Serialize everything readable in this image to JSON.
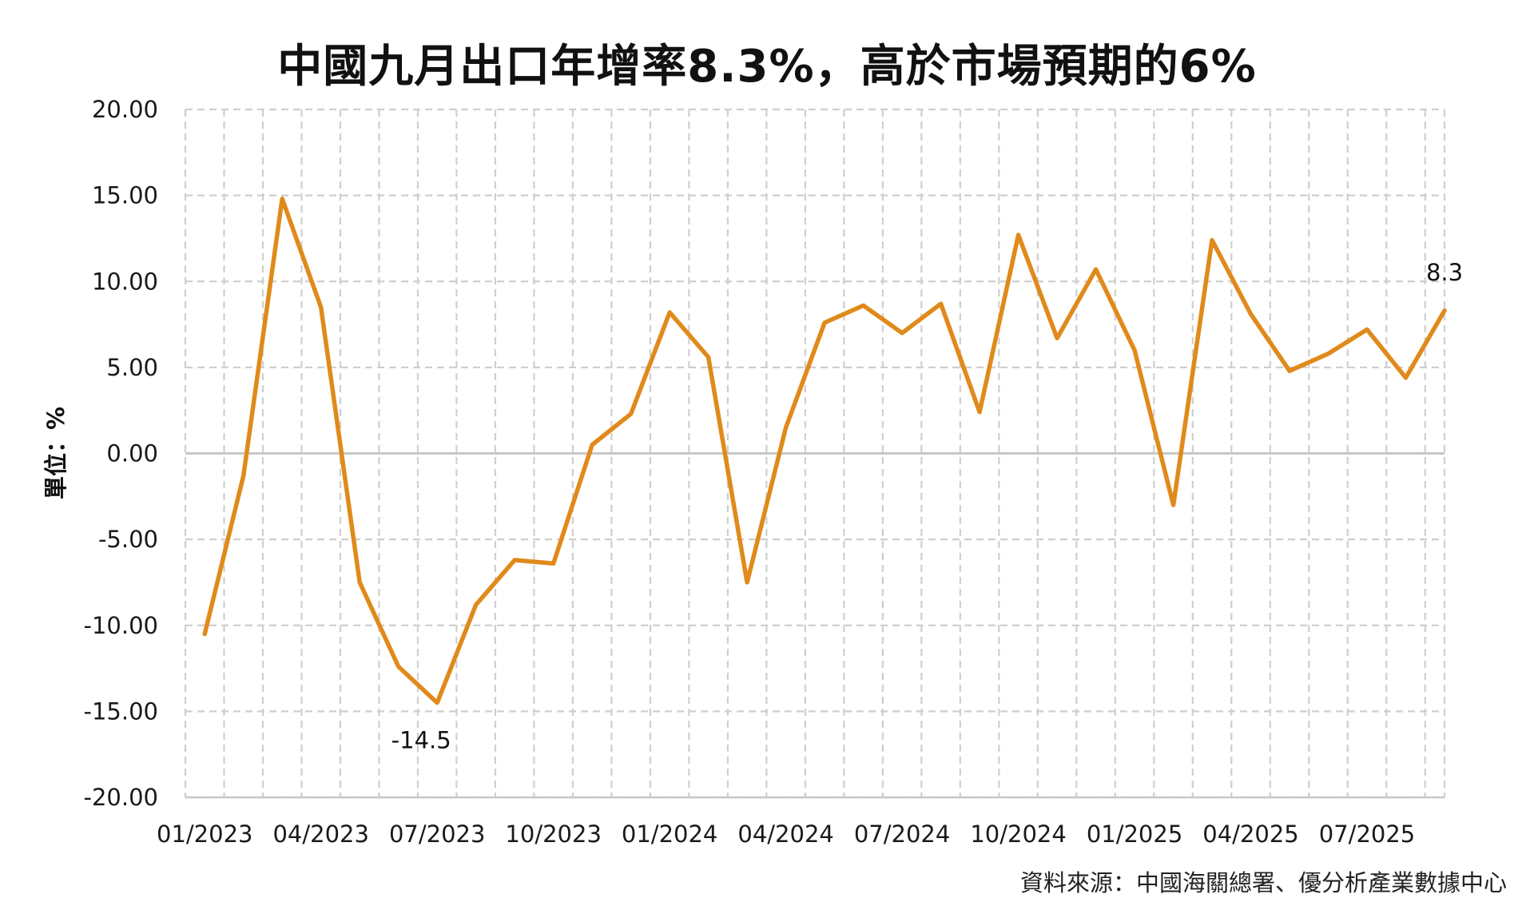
{
  "colors": {
    "line": "#E08A1B",
    "grid": "#cfcfcf",
    "zero": "#c8c8c8",
    "text": "#111111"
  },
  "chart_data": {
    "type": "line",
    "title": "中國九月出口年增率8.3%，高於市場預期的6%",
    "ylabel": "單位：%",
    "source": "資料來源：中國海關總署、優分析產業數據中心",
    "ylim": [
      -20,
      20
    ],
    "ytick_values": [
      20,
      15,
      10,
      5,
      0,
      -5,
      -10,
      -15,
      -20
    ],
    "ytick_labels": [
      "20.00",
      "15.00",
      "10.00",
      "5.00",
      "0.00",
      "-5.00",
      "-10.00",
      "-15.00",
      "-20.00"
    ],
    "x": [
      "01/2023",
      "02/2023",
      "03/2023",
      "04/2023",
      "05/2023",
      "06/2023",
      "07/2023",
      "08/2023",
      "09/2023",
      "10/2023",
      "11/2023",
      "12/2023",
      "01/2024",
      "02/2024",
      "03/2024",
      "04/2024",
      "05/2024",
      "06/2024",
      "07/2024",
      "08/2024",
      "09/2024",
      "10/2024",
      "11/2024",
      "12/2024",
      "01/2025",
      "02/2025",
      "03/2025",
      "04/2025",
      "05/2025",
      "06/2025",
      "07/2025",
      "08/2025",
      "09/2025"
    ],
    "xtick_labels": [
      "01/2023",
      "04/2023",
      "07/2023",
      "10/2023",
      "01/2024",
      "04/2024",
      "07/2024",
      "10/2024",
      "01/2025",
      "04/2025",
      "07/2025"
    ],
    "series": [
      {
        "values": [
          -10.5,
          -1.3,
          14.8,
          8.5,
          -7.5,
          -12.4,
          -14.5,
          -8.8,
          -6.2,
          -6.4,
          0.5,
          2.3,
          8.2,
          5.6,
          -7.5,
          1.5,
          7.6,
          8.6,
          7.0,
          8.7,
          2.4,
          12.7,
          6.7,
          10.7,
          6.0,
          -3.0,
          12.4,
          8.1,
          4.8,
          5.8,
          7.2,
          4.4,
          8.3
        ]
      }
    ],
    "annotations": [
      {
        "x": "07/2023",
        "y": -14.5,
        "text": "-14.5"
      },
      {
        "x": "09/2025",
        "y": 8.3,
        "text": "8.3"
      }
    ],
    "grid": true
  }
}
